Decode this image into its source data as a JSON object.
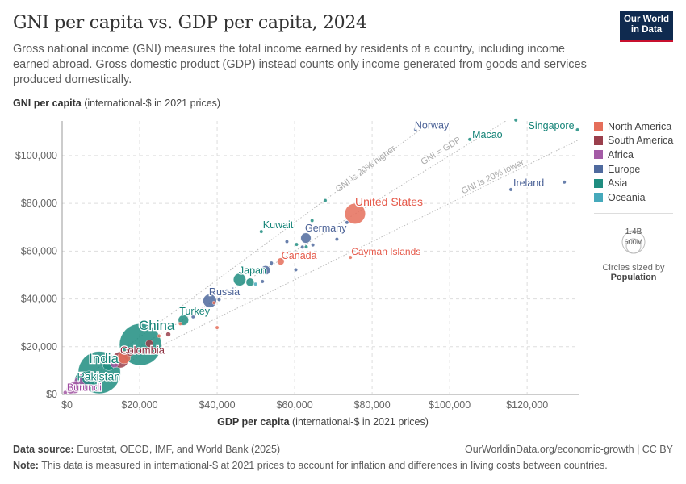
{
  "header": {
    "title": "GNI per capita vs. GDP per capita, 2024",
    "subtitle": "Gross national income (GNI) measures the total income earned by residents of a country, including income earned abroad. Gross domestic product (GDP) instead counts only income generated from goods and services produced domestically.",
    "logo": "Our World in Data"
  },
  "chart_data": {
    "type": "scatter",
    "title": "GNI per capita vs. GDP per capita, 2024",
    "xlabel_bold": "GDP per capita",
    "xlabel_rest": "(international-$ in 2021 prices)",
    "ylabel_bold": "GNI per capita",
    "ylabel_rest": "(international-$ in 2021 prices)",
    "xlim": [
      0,
      133300
    ],
    "ylim": [
      0,
      114500
    ],
    "xticks": [
      0,
      20000,
      40000,
      60000,
      80000,
      100000,
      120000
    ],
    "xtick_labels": [
      "$0",
      "$20,000",
      "$40,000",
      "$60,000",
      "$80,000",
      "$100,000",
      "$120,000"
    ],
    "yticks": [
      0,
      20000,
      40000,
      60000,
      80000,
      100000
    ],
    "ytick_labels": [
      "$0",
      "$20,000",
      "$40,000",
      "$60,000",
      "$80,000",
      "$100,000"
    ],
    "grid": true,
    "reference_lines": [
      {
        "ratio": 1.2,
        "label": "GNI is 20% higher"
      },
      {
        "ratio": 1.0,
        "label": "GNI = GDP"
      },
      {
        "ratio": 0.8,
        "label": "GNI is 20% lower"
      }
    ],
    "colors": {
      "North America": "#e56e5a",
      "South America": "#9a3f4c",
      "Africa": "#a45ba6",
      "Europe": "#4f6a9e",
      "Asia": "#1f8d80",
      "Oceania": "#46a9bb"
    },
    "label_colors": {
      "North America": "#e5594a",
      "South America": "#8b2a3c",
      "Africa": "#a04ba2",
      "Europe": "#4a6196",
      "Asia": "#138377",
      "Oceania": "#2f98ab"
    },
    "legend": [
      "North America",
      "South America",
      "Africa",
      "Europe",
      "Asia",
      "Oceania"
    ],
    "legend_position": "right",
    "size_legend": {
      "large": "1.4B",
      "small": "600M",
      "caption": "Circles sized by",
      "variable": "Population"
    },
    "points": [
      {
        "name": "Norway",
        "continent": "Europe",
        "gdp": 91200,
        "gni": 111000,
        "pop": 5.5
      },
      {
        "name": "Macao",
        "continent": "Asia",
        "gdp": 105200,
        "gni": 106800,
        "pop": 0.7
      },
      {
        "name": "Singapore",
        "continent": "Asia",
        "gdp": 133000,
        "gni": 110800,
        "pop": 6
      },
      {
        "name": "",
        "continent": "Asia",
        "gdp": 117100,
        "gni": 114900,
        "pop": 0.5
      },
      {
        "name": "Ireland",
        "continent": "Europe",
        "gdp": 115800,
        "gni": 85800,
        "pop": 5.2
      },
      {
        "name": "",
        "continent": "Europe",
        "gdp": 129600,
        "gni": 88900,
        "pop": 0.7
      },
      {
        "name": "United States",
        "continent": "North America",
        "gdp": 75600,
        "gni": 75700,
        "pop": 340
      },
      {
        "name": "Cayman Islands",
        "continent": "North America",
        "gdp": 74400,
        "gni": 57400,
        "pop": 0.07
      },
      {
        "name": "Kuwait",
        "continent": "Asia",
        "gdp": 51400,
        "gni": 68200,
        "pop": 4.9
      },
      {
        "name": "",
        "continent": "Asia",
        "gdp": 67900,
        "gni": 81200,
        "pop": 2.7
      },
      {
        "name": "",
        "continent": "Asia",
        "gdp": 64500,
        "gni": 72800,
        "pop": 10
      },
      {
        "name": "",
        "continent": "Europe",
        "gdp": 73500,
        "gni": 72000,
        "pop": 9
      },
      {
        "name": "",
        "continent": "Europe",
        "gdp": 70900,
        "gni": 65000,
        "pop": 5.9
      },
      {
        "name": "Germany",
        "continent": "Europe",
        "gdp": 62900,
        "gni": 65500,
        "pop": 84
      },
      {
        "name": "",
        "continent": "Asia",
        "gdp": 60500,
        "gni": 62800,
        "pop": 3
      },
      {
        "name": "",
        "continent": "Europe",
        "gdp": 62000,
        "gni": 61700,
        "pop": 9
      },
      {
        "name": "",
        "continent": "Europe",
        "gdp": 64700,
        "gni": 62600,
        "pop": 10
      },
      {
        "name": "",
        "continent": "Asia",
        "gdp": 63000,
        "gni": 61800,
        "pop": 4
      },
      {
        "name": "",
        "continent": "Europe",
        "gdp": 58000,
        "gni": 64000,
        "pop": 5
      },
      {
        "name": "",
        "continent": "Europe",
        "gdp": 60300,
        "gni": 52200,
        "pop": 3
      },
      {
        "name": "Canada",
        "continent": "North America",
        "gdp": 56400,
        "gni": 55700,
        "pop": 40
      },
      {
        "name": "",
        "continent": "Europe",
        "gdp": 54000,
        "gni": 55000,
        "pop": 11
      },
      {
        "name": "",
        "continent": "Europe",
        "gdp": 52500,
        "gni": 52000,
        "pop": 68
      },
      {
        "name": "Japan",
        "continent": "Asia",
        "gdp": 45800,
        "gni": 48100,
        "pop": 124
      },
      {
        "name": "",
        "continent": "Asia",
        "gdp": 48500,
        "gni": 47000,
        "pop": 52
      },
      {
        "name": "",
        "continent": "Oceania",
        "gdp": 49900,
        "gni": 46200,
        "pop": 5
      },
      {
        "name": "",
        "continent": "Europe",
        "gdp": 51700,
        "gni": 47300,
        "pop": 1
      },
      {
        "name": "",
        "continent": "Europe",
        "gdp": 42300,
        "gni": 43500,
        "pop": 10
      },
      {
        "name": "Russia",
        "continent": "Europe",
        "gdp": 38100,
        "gni": 39200,
        "pop": 144
      },
      {
        "name": "",
        "continent": "North America",
        "gdp": 39200,
        "gni": 38400,
        "pop": 1
      },
      {
        "name": "",
        "continent": "Europe",
        "gdp": 40500,
        "gni": 39700,
        "pop": 2
      },
      {
        "name": "Turkey",
        "continent": "Asia",
        "gdp": 31300,
        "gni": 31100,
        "pop": 86
      },
      {
        "name": "",
        "continent": "Europe",
        "gdp": 33800,
        "gni": 32500,
        "pop": 2
      },
      {
        "name": "",
        "continent": "North America",
        "gdp": 40000,
        "gni": 28000,
        "pop": 0.5
      },
      {
        "name": "",
        "continent": "North America",
        "gdp": 30500,
        "gni": 29600,
        "pop": 2
      },
      {
        "name": "",
        "continent": "South America",
        "gdp": 27400,
        "gni": 25200,
        "pop": 18
      },
      {
        "name": "",
        "continent": "North America",
        "gdp": 25000,
        "gni": 24500,
        "pop": 5
      },
      {
        "name": "",
        "continent": "South America",
        "gdp": 22500,
        "gni": 21300,
        "pop": 46
      },
      {
        "name": "China",
        "continent": "Asia",
        "gdp": 20200,
        "gni": 20900,
        "pop": 1410
      },
      {
        "name": "Colombia",
        "continent": "South America",
        "gdp": 17500,
        "gni": 17800,
        "pop": 52
      },
      {
        "name": "",
        "continent": "North America",
        "gdp": 16000,
        "gni": 15500,
        "pop": 130
      },
      {
        "name": "",
        "continent": "South America",
        "gdp": 15000,
        "gni": 14500,
        "pop": 210
      },
      {
        "name": "",
        "continent": "Africa",
        "gdp": 13500,
        "gni": 13000,
        "pop": 60
      },
      {
        "name": "",
        "continent": "Asia",
        "gdp": 12000,
        "gni": 12500,
        "pop": 115
      },
      {
        "name": "India",
        "continent": "Asia",
        "gdp": 9600,
        "gni": 9200,
        "pop": 1440
      },
      {
        "name": "Pakistan",
        "continent": "Asia",
        "gdp": 5500,
        "gni": 5900,
        "pop": 250
      },
      {
        "name": "",
        "continent": "Africa",
        "gdp": 5300,
        "gni": 5000,
        "pop": 230
      },
      {
        "name": "",
        "continent": "Africa",
        "gdp": 3200,
        "gni": 3000,
        "pop": 120
      },
      {
        "name": "",
        "continent": "Asia",
        "gdp": 7000,
        "gni": 6800,
        "pop": 170
      },
      {
        "name": "",
        "continent": "Africa",
        "gdp": 2200,
        "gni": 2100,
        "pop": 60
      },
      {
        "name": "Burundi",
        "continent": "Africa",
        "gdp": 800,
        "gni": 800,
        "pop": 13
      }
    ]
  },
  "footer": {
    "source_label": "Data source:",
    "source": "Eurostat, OECD, IMF, and World Bank (2025)",
    "url": "OurWorldinData.org/economic-growth | CC BY",
    "note_label": "Note:",
    "note": "This data is measured in international-$ at 2021 prices to account for inflation and differences in living costs between countries."
  }
}
